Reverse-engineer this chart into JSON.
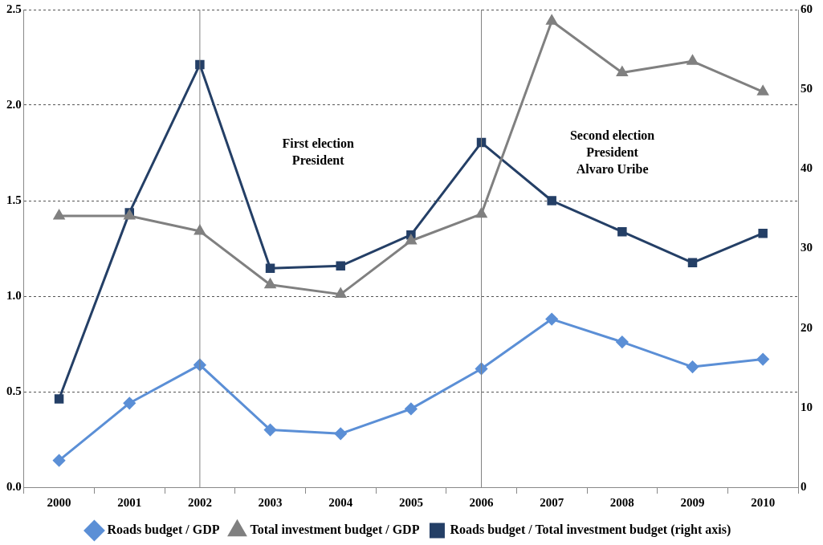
{
  "chart_data": {
    "type": "line",
    "categories": [
      "2000",
      "2001",
      "2002",
      "2003",
      "2004",
      "2005",
      "2006",
      "2007",
      "2008",
      "2009",
      "2010"
    ],
    "series": [
      {
        "name": "Roads budget / GDP",
        "color": "#5b8fd6",
        "marker": "diamond",
        "values": [
          0.14,
          0.44,
          0.64,
          0.3,
          0.28,
          0.41,
          0.62,
          0.88,
          0.76,
          0.63,
          0.67
        ]
      },
      {
        "name": "Total investment budget / GDP",
        "color": "#808080",
        "marker": "triangle",
        "values": [
          1.42,
          1.42,
          1.34,
          1.06,
          1.01,
          1.29,
          1.43,
          2.44,
          2.17,
          2.23,
          2.07
        ]
      },
      {
        "name": "Roads budget / Total investment budget (right axis)",
        "color": "#243f66",
        "marker": "square",
        "axis": "y2",
        "values": [
          11.1,
          34.5,
          53.1,
          27.5,
          27.8,
          31.7,
          43.3,
          36.0,
          32.1,
          28.2,
          31.9
        ]
      }
    ],
    "ylim": [
      0,
      2.5
    ],
    "yticks": [
      {
        "value": 0,
        "label": "0.0"
      },
      {
        "value": 0.5,
        "label": "0.5"
      },
      {
        "value": 1,
        "label": "1.0"
      },
      {
        "value": 1.5,
        "label": "1.5"
      },
      {
        "value": 2,
        "label": "2.0"
      },
      {
        "value": 2.5,
        "label": "2.5"
      }
    ],
    "y2lim": [
      0,
      60
    ],
    "y2ticks": [
      0,
      10,
      20,
      30,
      40,
      50,
      60
    ],
    "grid": "y",
    "legend": "bottom",
    "ref_lines": [
      {
        "axis": "x",
        "value": "2002",
        "color": "#808080"
      },
      {
        "axis": "x",
        "value": "2006",
        "color": "#808080"
      }
    ],
    "annotations": [
      "First election\nPresident",
      "Second election\nPresident\nAlvaro Uribe"
    ]
  }
}
